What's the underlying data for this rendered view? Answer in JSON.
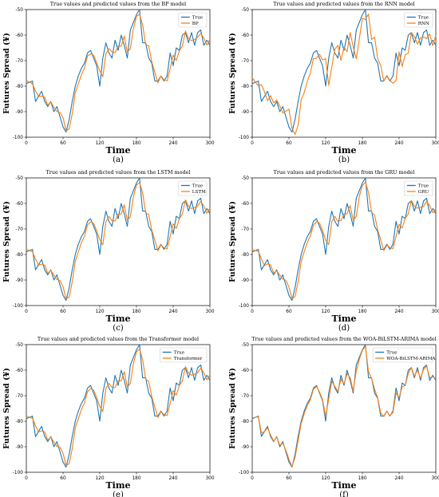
{
  "chart_data": [
    {
      "type": "line",
      "title": "True values and predicted values from the BP model",
      "xlabel": "Time",
      "ylabel": "Futures Spread (¥)",
      "caption": "(a)",
      "xlim": [
        0,
        300
      ],
      "ylim": [
        -100,
        -50
      ],
      "xticks": [
        "0",
        "60",
        "120",
        "180",
        "240",
        "300"
      ],
      "yticks": [
        "-100",
        "-90",
        "-80",
        "-70",
        "-60",
        "-50"
      ],
      "legend_position": "upper-right",
      "series": [
        {
          "name": "True",
          "color": "#1f77b4"
        },
        {
          "name": "BP",
          "color": "#ff7f0e"
        }
      ],
      "pred_lag": 3,
      "pred_bias": 1.2,
      "x": [
        0,
        10,
        15,
        20,
        25,
        30,
        35,
        40,
        45,
        50,
        55,
        60,
        65,
        70,
        75,
        80,
        85,
        90,
        95,
        100,
        105,
        110,
        115,
        120,
        125,
        130,
        135,
        140,
        145,
        150,
        155,
        160,
        165,
        170,
        175,
        180,
        185,
        190,
        195,
        200,
        205,
        210,
        215,
        220,
        225,
        230,
        235,
        240,
        245,
        250,
        255,
        260,
        265,
        270,
        275,
        280,
        285,
        290,
        295,
        300
      ],
      "true": [
        -79,
        -78,
        -86,
        -84,
        -82,
        -86,
        -88,
        -86,
        -90,
        -88,
        -92,
        -96,
        -98,
        -93,
        -86,
        -80,
        -76,
        -73,
        -71,
        -67,
        -66,
        -69,
        -72,
        -80,
        -69,
        -63,
        -67,
        -69,
        -62,
        -66,
        -60,
        -64,
        -69,
        -58,
        -55,
        -52,
        -50,
        -63,
        -63,
        -69,
        -71,
        -78,
        -78,
        -76,
        -78,
        -76,
        -67,
        -72,
        -65,
        -66,
        -60,
        -59,
        -63,
        -59,
        -64,
        -59,
        -58,
        -64,
        -62,
        -64
      ]
    },
    {
      "type": "line",
      "title": "True values and predicted values from the RNN model",
      "xlabel": "Time",
      "ylabel": "Futures Spread (¥)",
      "caption": "(b)",
      "xlim": [
        0,
        300
      ],
      "ylim": [
        -100,
        -50
      ],
      "xticks": [
        "0",
        "60",
        "120",
        "180",
        "240",
        "300"
      ],
      "yticks": [
        "-100",
        "-90",
        "-80",
        "-70",
        "-60",
        "-50"
      ],
      "legend_position": "upper-right",
      "series": [
        {
          "name": "True",
          "color": "#1f77b4"
        },
        {
          "name": "RNN",
          "color": "#ff7f0e"
        }
      ],
      "pred_lag": 6,
      "pred_bias": 2.2,
      "x": [
        0,
        10,
        15,
        20,
        25,
        30,
        35,
        40,
        45,
        50,
        55,
        60,
        65,
        70,
        75,
        80,
        85,
        90,
        95,
        100,
        105,
        110,
        115,
        120,
        125,
        130,
        135,
        140,
        145,
        150,
        155,
        160,
        165,
        170,
        175,
        180,
        185,
        190,
        195,
        200,
        205,
        210,
        215,
        220,
        225,
        230,
        235,
        240,
        245,
        250,
        255,
        260,
        265,
        270,
        275,
        280,
        285,
        290,
        295,
        300
      ],
      "true": [
        -79,
        -78,
        -86,
        -84,
        -82,
        -86,
        -88,
        -86,
        -90,
        -88,
        -92,
        -96,
        -98,
        -93,
        -86,
        -80,
        -76,
        -73,
        -71,
        -67,
        -66,
        -69,
        -72,
        -80,
        -69,
        -63,
        -67,
        -69,
        -62,
        -66,
        -60,
        -64,
        -69,
        -58,
        -55,
        -52,
        -50,
        -63,
        -63,
        -69,
        -71,
        -78,
        -78,
        -76,
        -78,
        -76,
        -67,
        -72,
        -65,
        -66,
        -60,
        -59,
        -63,
        -59,
        -64,
        -59,
        -58,
        -64,
        -62,
        -64
      ]
    },
    {
      "type": "line",
      "title": "True values and predicted values from the LSTM model",
      "xlabel": "Time",
      "ylabel": "Futures Spread (¥)",
      "caption": "(c)",
      "xlim": [
        0,
        300
      ],
      "ylim": [
        -100,
        -50
      ],
      "xticks": [
        "0",
        "60",
        "120",
        "180",
        "240",
        "300"
      ],
      "yticks": [
        "-100",
        "-90",
        "-80",
        "-70",
        "-60",
        "-50"
      ],
      "legend_position": "upper-right",
      "series": [
        {
          "name": "True",
          "color": "#1f77b4"
        },
        {
          "name": "LSTM",
          "color": "#ff7f0e"
        }
      ],
      "pred_lag": 3,
      "pred_bias": 1.0,
      "x": [
        0,
        10,
        15,
        20,
        25,
        30,
        35,
        40,
        45,
        50,
        55,
        60,
        65,
        70,
        75,
        80,
        85,
        90,
        95,
        100,
        105,
        110,
        115,
        120,
        125,
        130,
        135,
        140,
        145,
        150,
        155,
        160,
        165,
        170,
        175,
        180,
        185,
        190,
        195,
        200,
        205,
        210,
        215,
        220,
        225,
        230,
        235,
        240,
        245,
        250,
        255,
        260,
        265,
        270,
        275,
        280,
        285,
        290,
        295,
        300
      ],
      "true": [
        -79,
        -78,
        -86,
        -84,
        -82,
        -86,
        -88,
        -86,
        -90,
        -88,
        -92,
        -96,
        -98,
        -93,
        -86,
        -80,
        -76,
        -73,
        -71,
        -67,
        -66,
        -69,
        -72,
        -80,
        -69,
        -63,
        -67,
        -69,
        -62,
        -66,
        -60,
        -64,
        -69,
        -58,
        -55,
        -52,
        -50,
        -63,
        -63,
        -69,
        -71,
        -78,
        -78,
        -76,
        -78,
        -76,
        -67,
        -72,
        -65,
        -66,
        -60,
        -59,
        -63,
        -59,
        -64,
        -59,
        -58,
        -64,
        -62,
        -64
      ]
    },
    {
      "type": "line",
      "title": "True values and predicted values from the GRU model",
      "xlabel": "Time",
      "ylabel": "Futures Spread (¥)",
      "caption": "(d)",
      "xlim": [
        0,
        300
      ],
      "ylim": [
        -100,
        -50
      ],
      "xticks": [
        "0",
        "60",
        "120",
        "180",
        "240",
        "300"
      ],
      "yticks": [
        "-100",
        "-90",
        "-80",
        "-70",
        "-60",
        "-50"
      ],
      "legend_position": "upper-right",
      "series": [
        {
          "name": "True",
          "color": "#1f77b4"
        },
        {
          "name": "GRU",
          "color": "#ff7f0e"
        }
      ],
      "pred_lag": 3,
      "pred_bias": 0.8,
      "x": [
        0,
        10,
        15,
        20,
        25,
        30,
        35,
        40,
        45,
        50,
        55,
        60,
        65,
        70,
        75,
        80,
        85,
        90,
        95,
        100,
        105,
        110,
        115,
        120,
        125,
        130,
        135,
        140,
        145,
        150,
        155,
        160,
        165,
        170,
        175,
        180,
        185,
        190,
        195,
        200,
        205,
        210,
        215,
        220,
        225,
        230,
        235,
        240,
        245,
        250,
        255,
        260,
        265,
        270,
        275,
        280,
        285,
        290,
        295,
        300
      ],
      "true": [
        -79,
        -78,
        -86,
        -84,
        -82,
        -86,
        -88,
        -86,
        -90,
        -88,
        -92,
        -96,
        -98,
        -93,
        -86,
        -80,
        -76,
        -73,
        -71,
        -67,
        -66,
        -69,
        -72,
        -80,
        -69,
        -63,
        -67,
        -69,
        -62,
        -66,
        -60,
        -64,
        -69,
        -58,
        -55,
        -52,
        -50,
        -63,
        -63,
        -69,
        -71,
        -78,
        -78,
        -76,
        -78,
        -76,
        -67,
        -72,
        -65,
        -66,
        -60,
        -59,
        -63,
        -59,
        -64,
        -59,
        -58,
        -64,
        -62,
        -64
      ]
    },
    {
      "type": "line",
      "title": "True values and predicted values from the Transformer model",
      "xlabel": "Time",
      "ylabel": "Futures Spread (¥)",
      "caption": "(e)",
      "xlim": [
        0,
        300
      ],
      "ylim": [
        -100,
        -50
      ],
      "xticks": [
        "0",
        "60",
        "120",
        "180",
        "240",
        "300"
      ],
      "yticks": [
        "-100",
        "-90",
        "-80",
        "-70",
        "-60",
        "-50"
      ],
      "legend_position": "upper-right",
      "series": [
        {
          "name": "True",
          "color": "#1f77b4"
        },
        {
          "name": "Transformer",
          "color": "#ff7f0e"
        }
      ],
      "pred_lag": 3,
      "pred_bias": 1.0,
      "x": [
        0,
        10,
        15,
        20,
        25,
        30,
        35,
        40,
        45,
        50,
        55,
        60,
        65,
        70,
        75,
        80,
        85,
        90,
        95,
        100,
        105,
        110,
        115,
        120,
        125,
        130,
        135,
        140,
        145,
        150,
        155,
        160,
        165,
        170,
        175,
        180,
        185,
        190,
        195,
        200,
        205,
        210,
        215,
        220,
        225,
        230,
        235,
        240,
        245,
        250,
        255,
        260,
        265,
        270,
        275,
        280,
        285,
        290,
        295,
        300
      ],
      "true": [
        -79,
        -78,
        -86,
        -84,
        -82,
        -86,
        -88,
        -86,
        -90,
        -88,
        -92,
        -96,
        -98,
        -93,
        -86,
        -80,
        -76,
        -73,
        -71,
        -67,
        -66,
        -69,
        -72,
        -80,
        -69,
        -63,
        -67,
        -69,
        -62,
        -66,
        -60,
        -64,
        -69,
        -58,
        -55,
        -52,
        -50,
        -63,
        -63,
        -69,
        -71,
        -78,
        -78,
        -76,
        -78,
        -76,
        -67,
        -72,
        -65,
        -66,
        -60,
        -59,
        -63,
        -59,
        -64,
        -59,
        -58,
        -64,
        -62,
        -64
      ]
    },
    {
      "type": "line",
      "title": "True values and predicted values from the WOA-BiLSTM-ARIMA model",
      "xlabel": "Time",
      "ylabel": "Futures Spread (¥)",
      "caption": "(f)",
      "xlim": [
        0,
        300
      ],
      "ylim": [
        -100,
        -50
      ],
      "xticks": [
        "0",
        "60",
        "120",
        "180",
        "240",
        "300"
      ],
      "yticks": [
        "-100",
        "-90",
        "-80",
        "-70",
        "-60",
        "-50"
      ],
      "legend_position": "upper-right",
      "series": [
        {
          "name": "True",
          "color": "#1f77b4"
        },
        {
          "name": "WOA-BiLSTM-ARIMA",
          "color": "#ff7f0e"
        }
      ],
      "pred_lag": 1,
      "pred_bias": 0.3,
      "x": [
        0,
        10,
        15,
        20,
        25,
        30,
        35,
        40,
        45,
        50,
        55,
        60,
        65,
        70,
        75,
        80,
        85,
        90,
        95,
        100,
        105,
        110,
        115,
        120,
        125,
        130,
        135,
        140,
        145,
        150,
        155,
        160,
        165,
        170,
        175,
        180,
        185,
        190,
        195,
        200,
        205,
        210,
        215,
        220,
        225,
        230,
        235,
        240,
        245,
        250,
        255,
        260,
        265,
        270,
        275,
        280,
        285,
        290,
        295,
        300
      ],
      "true": [
        -79,
        -78,
        -86,
        -84,
        -82,
        -86,
        -88,
        -86,
        -90,
        -88,
        -92,
        -96,
        -98,
        -93,
        -86,
        -80,
        -76,
        -73,
        -71,
        -67,
        -66,
        -69,
        -72,
        -80,
        -69,
        -63,
        -67,
        -69,
        -62,
        -66,
        -60,
        -64,
        -69,
        -58,
        -55,
        -52,
        -50,
        -63,
        -63,
        -69,
        -71,
        -78,
        -78,
        -76,
        -78,
        -76,
        -67,
        -72,
        -65,
        -66,
        -60,
        -59,
        -63,
        -59,
        -64,
        -59,
        -58,
        -64,
        -62,
        -64
      ]
    }
  ]
}
